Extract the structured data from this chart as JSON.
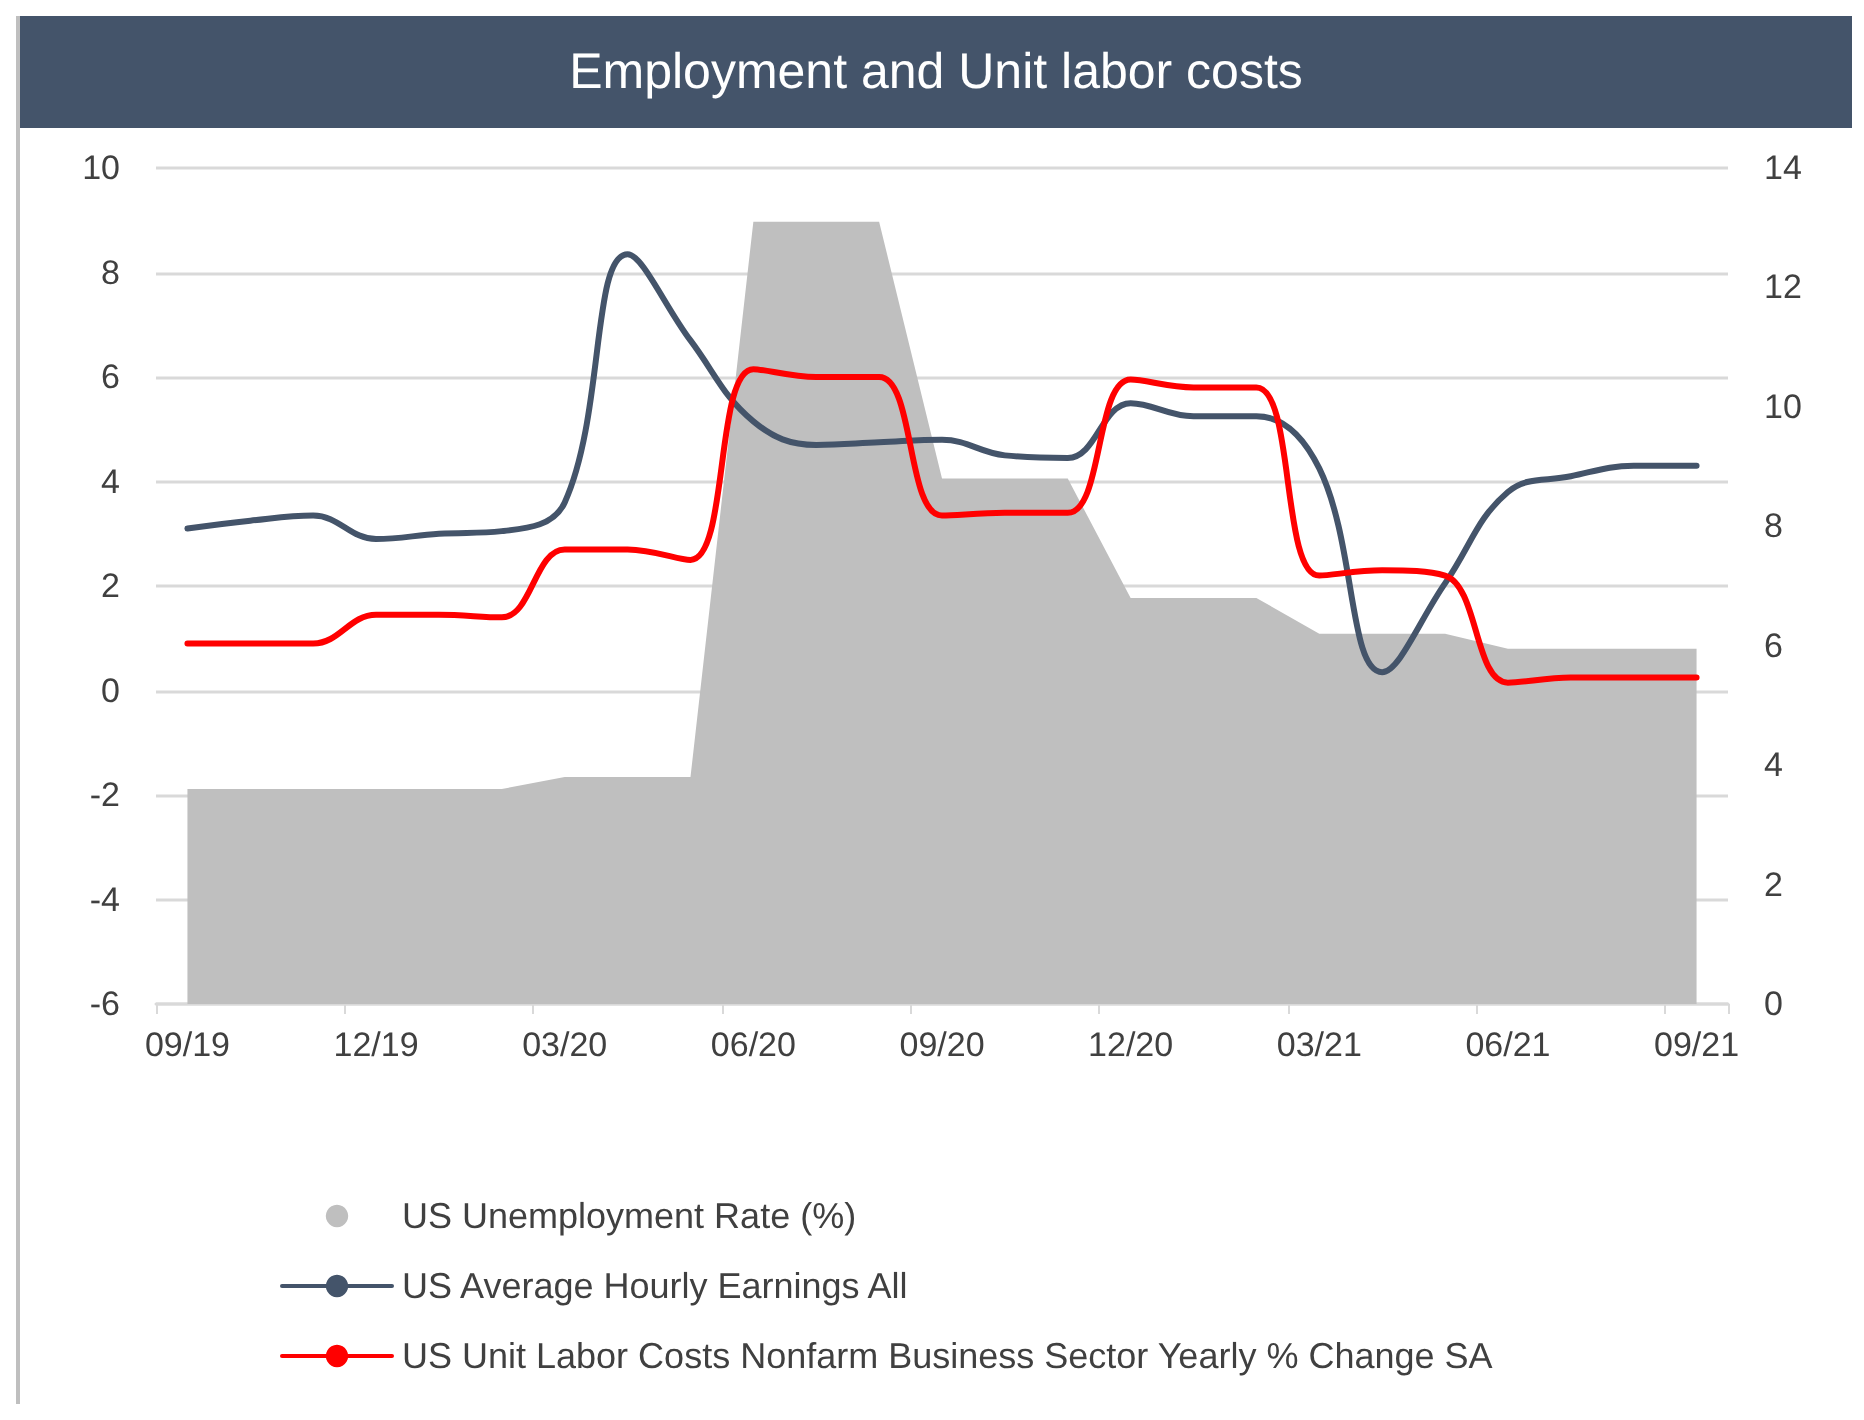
{
  "chart_data": {
    "type": "line",
    "title": "Employment and Unit labor costs",
    "categories": [
      "09/19",
      null,
      null,
      "12/19",
      null,
      null,
      "03/20",
      null,
      null,
      "06/20",
      null,
      null,
      "09/20",
      null,
      null,
      "12/20",
      null,
      null,
      "03/21",
      null,
      null,
      "06/21",
      null,
      null,
      "09/21"
    ],
    "series": [
      {
        "name": "US Unemployment Rate (%)",
        "type": "area",
        "axis": "y2",
        "color": "#bfbfbf",
        "values": [
          3.6,
          3.6,
          3.6,
          3.6,
          3.6,
          3.6,
          3.8,
          3.8,
          3.8,
          13.1,
          13.1,
          13.1,
          8.8,
          8.8,
          8.8,
          6.8,
          6.8,
          6.8,
          6.2,
          6.2,
          6.2,
          5.95,
          5.95,
          5.95,
          5.95
        ]
      },
      {
        "name": "US Average Hourly Earnings All",
        "color": "#44546a",
        "values": [
          3.1,
          3.25,
          3.35,
          2.9,
          3.0,
          3.05,
          3.6,
          8.35,
          6.7,
          5.15,
          4.7,
          4.75,
          4.8,
          4.5,
          4.45,
          5.5,
          5.25,
          5.25,
          4.25,
          0.35,
          2.05,
          3.8,
          4.1,
          4.3,
          4.3
        ]
      },
      {
        "name": "US Unit Labor Costs Nonfarm Business Sector Yearly % Change SA",
        "color": "#ff0000",
        "values": [
          0.9,
          0.9,
          0.9,
          1.45,
          1.45,
          1.4,
          2.7,
          2.7,
          2.5,
          6.15,
          6.0,
          6.0,
          3.35,
          3.4,
          3.4,
          5.95,
          5.8,
          5.8,
          2.2,
          2.3,
          2.2,
          0.15,
          0.25,
          0.25,
          0.25
        ]
      }
    ],
    "ylim": [
      -6,
      10
    ],
    "yticks": [
      -6,
      -4,
      -2,
      0,
      2,
      4,
      6,
      8,
      10
    ],
    "y2lim": [
      0,
      14
    ],
    "y2ticks": [
      0,
      2,
      4,
      6,
      8,
      10,
      12,
      14
    ],
    "grid": "y",
    "legend": "bottom",
    "marker": "none",
    "line_style": "solid"
  }
}
